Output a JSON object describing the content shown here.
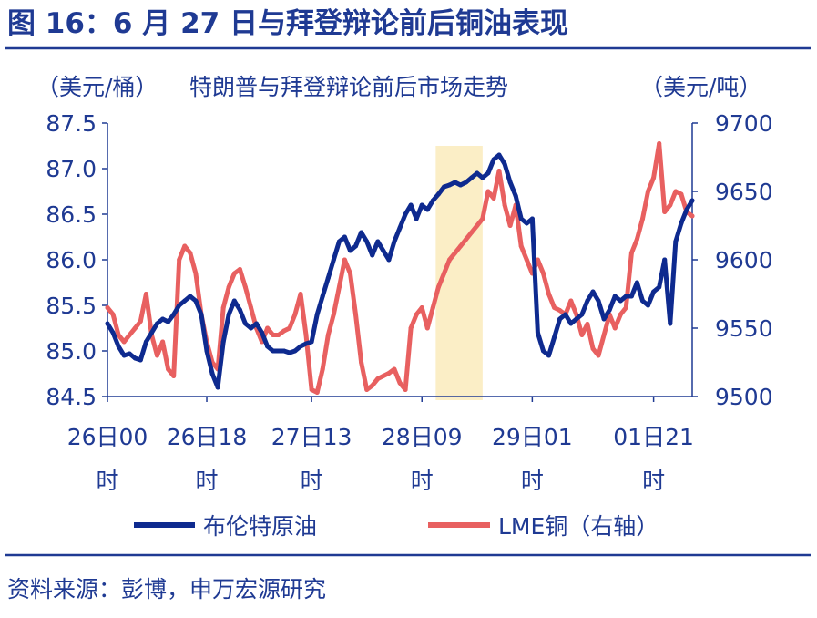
{
  "figure": {
    "label": "图 16：6 月 27 日与拜登辩论前后铜油表现",
    "source": "资料来源：彭博，申万宏源研究",
    "accent_color": "#1f3a93"
  },
  "chart_data": {
    "type": "line",
    "title": "特朗普与拜登辩论前后市场走势",
    "left_unit": "（美元/桶）",
    "right_unit": "（美元/吨）",
    "x_ticks": [
      "26日00时",
      "26日18时",
      "27日13时",
      "28日09时",
      "29日01时",
      "01日21时"
    ],
    "x_tick_index": [
      0,
      18,
      37,
      57,
      77,
      99
    ],
    "x_range": [
      0,
      106
    ],
    "y_left": {
      "lim": [
        84.5,
        87.5
      ],
      "ticks": [
        "84.5",
        "85.0",
        "85.5",
        "86.0",
        "86.5",
        "87.0",
        "87.5"
      ]
    },
    "y_right": {
      "lim": [
        9500,
        9700
      ],
      "ticks": [
        "9500",
        "9550",
        "9600",
        "9650",
        "9700"
      ]
    },
    "highlight": {
      "x_start": 59.5,
      "x_end": 68,
      "color": "#fbeec6"
    },
    "series": [
      {
        "name": "布伦特原油",
        "axis": "left",
        "color": "#0e2a8f",
        "x": [
          0,
          1,
          2,
          3,
          4,
          5,
          6,
          7,
          8,
          9,
          10,
          11,
          12,
          13,
          14,
          15,
          16,
          17,
          18,
          19,
          20,
          21,
          22,
          23,
          24,
          25,
          26,
          27,
          28,
          29,
          30,
          31,
          32,
          33,
          34,
          35,
          36,
          37,
          38,
          39,
          40,
          41,
          42,
          43,
          44,
          45,
          46,
          47,
          48,
          49,
          50,
          51,
          52,
          53,
          54,
          55,
          56,
          57,
          58,
          59,
          60,
          61,
          62,
          63,
          64,
          65,
          66,
          67,
          68,
          69,
          70,
          71,
          72,
          73,
          74,
          75,
          76,
          77,
          78,
          79,
          80,
          81,
          82,
          83,
          84,
          85,
          86,
          87,
          88,
          89,
          90,
          91,
          92,
          93,
          94,
          95,
          96,
          97,
          98,
          99,
          100,
          101,
          102,
          103,
          104,
          105,
          106
        ],
        "values": [
          85.3,
          85.2,
          85.05,
          84.95,
          84.97,
          84.92,
          84.9,
          85.1,
          85.2,
          85.3,
          85.35,
          85.32,
          85.4,
          85.5,
          85.55,
          85.6,
          85.55,
          85.4,
          85.0,
          84.75,
          84.6,
          85.1,
          85.4,
          85.55,
          85.45,
          85.3,
          85.25,
          85.3,
          85.2,
          85.05,
          85.0,
          85.0,
          85.0,
          84.98,
          85.0,
          85.05,
          85.08,
          85.1,
          85.4,
          85.6,
          85.8,
          86.0,
          86.2,
          86.25,
          86.1,
          86.15,
          86.3,
          86.2,
          86.05,
          86.2,
          86.1,
          86.0,
          86.2,
          86.35,
          86.5,
          86.6,
          86.45,
          86.6,
          86.55,
          86.65,
          86.72,
          86.8,
          86.82,
          86.85,
          86.82,
          86.85,
          86.9,
          86.95,
          86.9,
          86.95,
          87.1,
          87.15,
          87.05,
          86.85,
          86.7,
          86.45,
          86.4,
          86.45,
          85.2,
          85.0,
          84.95,
          85.15,
          85.35,
          85.4,
          85.3,
          85.35,
          85.4,
          85.55,
          85.65,
          85.55,
          85.35,
          85.45,
          85.6,
          85.55,
          85.6,
          85.6,
          85.75,
          85.55,
          85.5,
          85.65,
          85.7,
          86.0,
          85.3,
          86.2,
          86.4,
          86.55,
          86.65
        ]
      },
      {
        "name": "LME铜（右轴）",
        "axis": "right",
        "color": "#e86060",
        "x": [
          0,
          1,
          2,
          3,
          4,
          5,
          6,
          7,
          8,
          9,
          10,
          11,
          12,
          13,
          14,
          15,
          16,
          17,
          18,
          19,
          20,
          21,
          22,
          23,
          24,
          25,
          26,
          27,
          28,
          29,
          30,
          31,
          32,
          33,
          34,
          35,
          36,
          37,
          38,
          39,
          40,
          41,
          42,
          43,
          44,
          45,
          46,
          47,
          48,
          49,
          50,
          51,
          52,
          53,
          54,
          55,
          56,
          57,
          58,
          59,
          60,
          61,
          62,
          63,
          64,
          65,
          66,
          67,
          68,
          69,
          70,
          71,
          72,
          73,
          74,
          75,
          76,
          77,
          78,
          79,
          80,
          81,
          82,
          83,
          84,
          85,
          86,
          87,
          88,
          89,
          90,
          91,
          92,
          93,
          94,
          95,
          96,
          97,
          98,
          99,
          100,
          101,
          102,
          103,
          104,
          105,
          106
        ],
        "values": [
          9565,
          9560,
          9545,
          9540,
          9545,
          9550,
          9555,
          9575,
          9545,
          9530,
          9540,
          9520,
          9515,
          9600,
          9610,
          9605,
          9590,
          9560,
          9540,
          9525,
          9520,
          9565,
          9580,
          9590,
          9593,
          9580,
          9565,
          9550,
          9540,
          9550,
          9545,
          9545,
          9548,
          9550,
          9560,
          9575,
          9545,
          9505,
          9503,
          9520,
          9545,
          9560,
          9580,
          9600,
          9590,
          9560,
          9525,
          9505,
          9508,
          9513,
          9515,
          9517,
          9520,
          9510,
          9505,
          9550,
          9560,
          9565,
          9550,
          9565,
          9580,
          9590,
          9600,
          9605,
          9610,
          9615,
          9620,
          9625,
          9630,
          9650,
          9645,
          9665,
          9640,
          9625,
          9640,
          9610,
          9600,
          9590,
          9600,
          9590,
          9575,
          9565,
          9563,
          9560,
          9570,
          9560,
          9545,
          9553,
          9535,
          9530,
          9545,
          9560,
          9550,
          9560,
          9565,
          9605,
          9615,
          9630,
          9650,
          9660,
          9685,
          9635,
          9640,
          9650,
          9648,
          9635,
          9632
        ]
      }
    ]
  }
}
